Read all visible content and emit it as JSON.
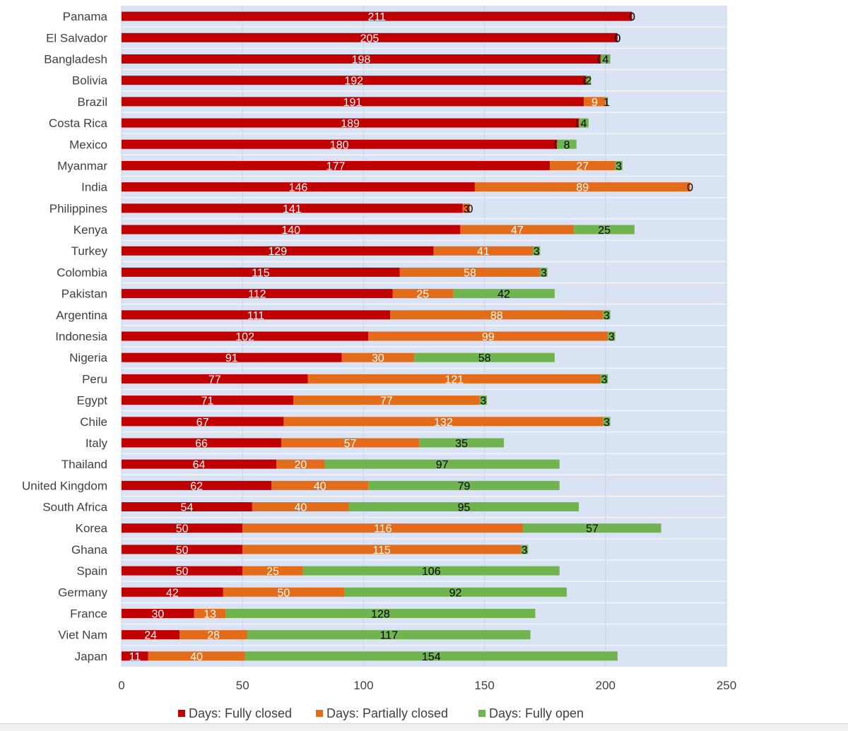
{
  "chart_data": {
    "type": "bar",
    "orientation": "horizontal",
    "stacked": true,
    "categories": [
      "Panama",
      "El Salvador",
      "Bangladesh",
      "Bolivia",
      "Brazil",
      "Costa Rica",
      "Mexico",
      "Myanmar",
      "India",
      "Philippines",
      "Kenya",
      "Turkey",
      "Colombia",
      "Pakistan",
      "Argentina",
      "Indonesia",
      "Nigeria",
      "Peru",
      "Egypt",
      "Chile",
      "Italy",
      "Thailand",
      "United Kingdom",
      "South Africa",
      "Korea",
      "Ghana",
      "Spain",
      "Germany",
      "France",
      "Viet Nam",
      "Japan"
    ],
    "series": [
      {
        "name": "Days: Fully closed",
        "color": "#c00000",
        "values": [
          211,
          205,
          198,
          192,
          191,
          189,
          180,
          177,
          146,
          141,
          140,
          129,
          115,
          112,
          111,
          102,
          91,
          77,
          71,
          67,
          66,
          64,
          62,
          54,
          50,
          50,
          50,
          42,
          30,
          24,
          11
        ]
      },
      {
        "name": "Days:  Partially closed",
        "color": "#e36c1a",
        "values": [
          0,
          0,
          0,
          0,
          9,
          0,
          0,
          27,
          89,
          3,
          47,
          41,
          58,
          25,
          88,
          99,
          30,
          121,
          77,
          132,
          57,
          20,
          40,
          40,
          116,
          115,
          25,
          50,
          13,
          28,
          40
        ]
      },
      {
        "name": "Days: Fully open",
        "color": "#70b450",
        "values": [
          0,
          0,
          4,
          2,
          1,
          4,
          8,
          3,
          0,
          0,
          25,
          3,
          3,
          42,
          3,
          3,
          58,
          3,
          3,
          3,
          35,
          97,
          79,
          95,
          57,
          3,
          106,
          92,
          128,
          117,
          154
        ]
      }
    ],
    "xlim": [
      0,
      250
    ],
    "xticks": [
      0,
      50,
      100,
      150,
      200,
      250
    ],
    "grid": true,
    "legend_position": "bottom",
    "plot_background": "#dae3f3",
    "gridline_color": "#ffffff"
  }
}
